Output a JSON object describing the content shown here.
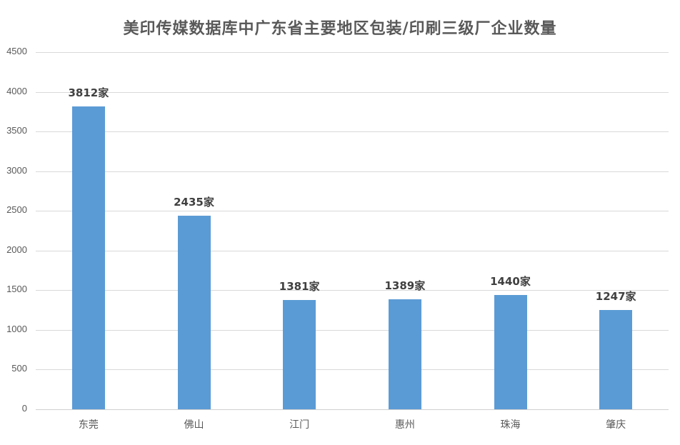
{
  "chart_data": {
    "type": "bar",
    "title": "美印传媒数据库中广东省主要地区包装/印刷三级厂企业数量",
    "xlabel": "",
    "ylabel": "",
    "ylim": [
      0,
      4500
    ],
    "yticks": [
      0,
      500,
      1000,
      1500,
      2000,
      2500,
      3000,
      3500,
      4000,
      4500
    ],
    "grid": true,
    "legend": null,
    "categories": [
      "东莞",
      "佛山",
      "江门",
      "惠州",
      "珠海",
      "肇庆"
    ],
    "values": [
      3812,
      2435,
      1381,
      1389,
      1440,
      1247
    ],
    "data_labels": [
      "3812家",
      "2435家",
      "1381家",
      "1389家",
      "1440家",
      "1247家"
    ],
    "bar_color": "#5B9BD5"
  }
}
